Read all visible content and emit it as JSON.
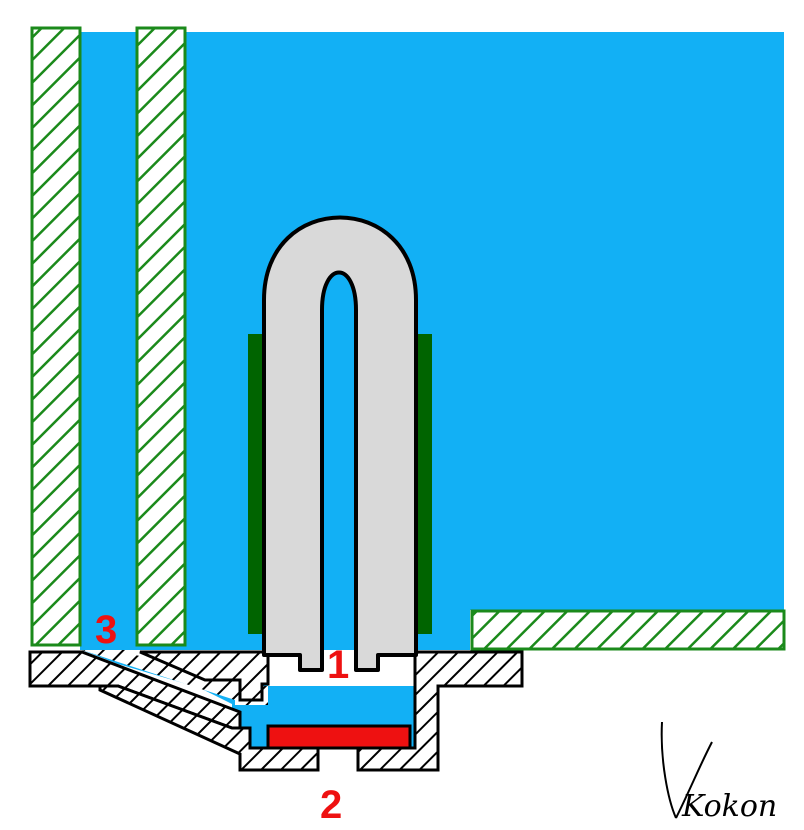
{
  "labels": {
    "one": "1",
    "two": "2",
    "three": "3"
  },
  "signature": "Kokon",
  "colors": {
    "water": "#12B0F5",
    "green_hatch": "#1B8A1B",
    "dark_green": "#006400",
    "gray": "#D9D9D9",
    "red": "#EE1111",
    "outline": "#000000",
    "label": "#EE1111"
  }
}
